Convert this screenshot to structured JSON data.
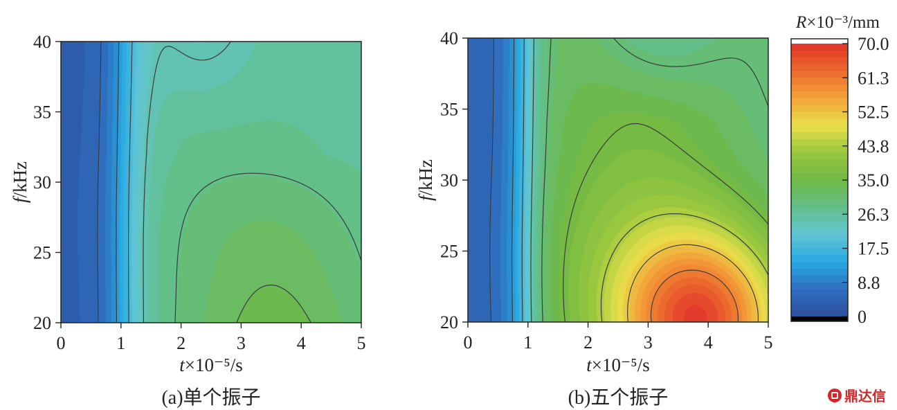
{
  "chart_data": [
    {
      "type": "heatmap",
      "panel": "(a)",
      "caption": "(a)单个振子",
      "xlabel_var": "t",
      "xlabel_rest": "×10⁻⁵/s",
      "ylabel_var": "f",
      "ylabel_rest": "/kHz",
      "xlim": [
        0,
        5
      ],
      "ylim": [
        20,
        40
      ],
      "xticks": [
        "0",
        "1",
        "2",
        "3",
        "4",
        "5"
      ],
      "yticks": [
        "20",
        "25",
        "30",
        "35",
        "40"
      ],
      "z_max_estimate": 36
    },
    {
      "type": "heatmap",
      "panel": "(b)",
      "caption": "(b)五个振子",
      "xlabel_var": "t",
      "xlabel_rest": "×10⁻⁵/s",
      "ylabel_var": "f",
      "ylabel_rest": "/kHz",
      "xlim": [
        0,
        5
      ],
      "ylim": [
        20,
        40
      ],
      "xticks": [
        "0",
        "1",
        "2",
        "3",
        "4",
        "5"
      ],
      "yticks": [
        "20",
        "25",
        "30",
        "35",
        "40"
      ],
      "z_max_estimate": 63
    }
  ],
  "colorbar": {
    "label_var": "R",
    "label_rest": "×10⁻³/mm",
    "range": [
      0,
      70.0
    ],
    "ticks": [
      "70.0",
      "61.3",
      "52.5",
      "43.8",
      "35.0",
      "26.3",
      "17.5",
      "8.8",
      "0"
    ],
    "colors": [
      "#2b4f9c",
      "#2f6fc0",
      "#27a9e1",
      "#62c6d6",
      "#62bf8a",
      "#6fb844",
      "#9ac83e",
      "#e8e04a",
      "#f3a23a",
      "#ec6b2d",
      "#e2332b"
    ]
  },
  "watermark": "鼎达信"
}
